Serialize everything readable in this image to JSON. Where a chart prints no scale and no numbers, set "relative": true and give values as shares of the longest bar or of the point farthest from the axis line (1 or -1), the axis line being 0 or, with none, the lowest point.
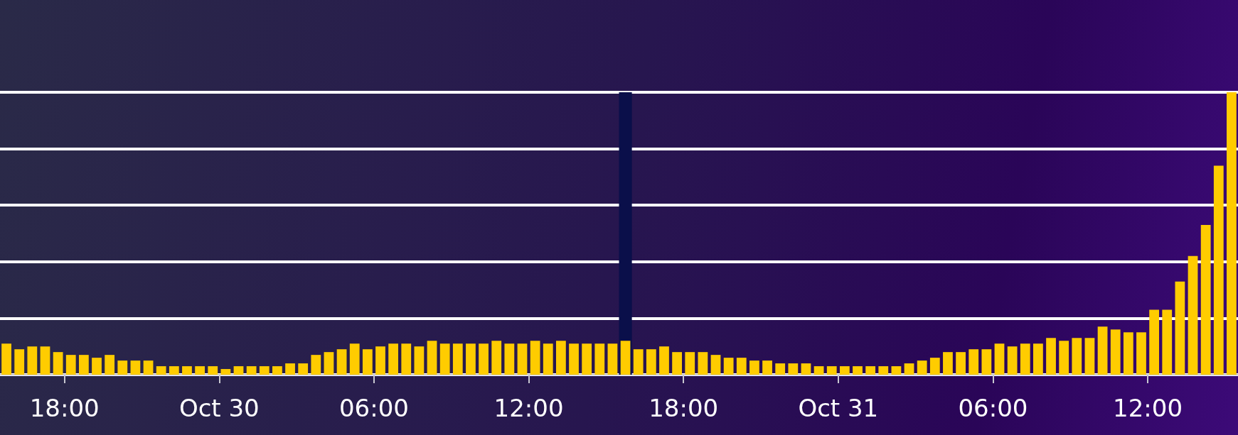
{
  "chart_data": {
    "type": "bar",
    "relative": true,
    "color": "#ffcc00",
    "grid": "y",
    "x": [
      "--10-29T15:45",
      "--10-29T16:15",
      "--10-29T16:45",
      "--10-29T17:15",
      "--10-29T17:45",
      "--10-29T18:15",
      "--10-29T18:45",
      "--10-29T19:15",
      "--10-29T19:45",
      "--10-29T20:15",
      "--10-29T20:45",
      "--10-29T21:15",
      "--10-29T21:45",
      "--10-29T22:15",
      "--10-29T22:45",
      "--10-29T23:15",
      "--10-29T23:45",
      "--10-30T00:15",
      "--10-30T00:45",
      "--10-30T01:15",
      "--10-30T01:45",
      "--10-30T02:15",
      "--10-30T02:45",
      "--10-30T03:15",
      "--10-30T03:45",
      "--10-30T04:15",
      "--10-30T04:45",
      "--10-30T05:15",
      "--10-30T05:45",
      "--10-30T06:15",
      "--10-30T06:45",
      "--10-30T07:15",
      "--10-30T07:45",
      "--10-30T08:15",
      "--10-30T08:45",
      "--10-30T09:15",
      "--10-30T09:45",
      "--10-30T10:15",
      "--10-30T10:45",
      "--10-30T11:15",
      "--10-30T11:45",
      "--10-30T12:15",
      "--10-30T12:45",
      "--10-30T13:15",
      "--10-30T13:45",
      "--10-30T14:15",
      "--10-30T14:45",
      "--10-30T15:15",
      "--10-30T15:45",
      "--10-30T16:15",
      "--10-30T16:45",
      "--10-30T17:15",
      "--10-30T17:45",
      "--10-30T18:15",
      "--10-30T18:45",
      "--10-30T19:15",
      "--10-30T19:45",
      "--10-30T20:15",
      "--10-30T20:45",
      "--10-30T21:15",
      "--10-30T21:45",
      "--10-30T22:15",
      "--10-30T22:45",
      "--10-30T23:15",
      "--10-30T23:45",
      "--10-31T00:15",
      "--10-31T00:45",
      "--10-31T01:15",
      "--10-31T01:45",
      "--10-31T02:15",
      "--10-31T02:45",
      "--10-31T03:15",
      "--10-31T03:45",
      "--10-31T04:15",
      "--10-31T04:45",
      "--10-31T05:15",
      "--10-31T05:45",
      "--10-31T06:15",
      "--10-31T06:45",
      "--10-31T07:15",
      "--10-31T07:45",
      "--10-31T08:15",
      "--10-31T08:45",
      "--10-31T09:15",
      "--10-31T09:45",
      "--10-31T10:15",
      "--10-31T10:45",
      "--10-31T11:15",
      "--10-31T11:45",
      "--10-31T12:15",
      "--10-31T12:45",
      "--10-31T13:15",
      "--10-31T13:45",
      "--10-31T14:15",
      "--10-31T14:45",
      "--10-31T15:15"
    ],
    "values": [
      0.11,
      0.09,
      0.1,
      0.1,
      0.08,
      0.07,
      0.07,
      0.06,
      0.07,
      0.05,
      0.05,
      0.05,
      0.03,
      0.03,
      0.03,
      0.03,
      0.03,
      0.02,
      0.03,
      0.03,
      0.03,
      0.03,
      0.04,
      0.04,
      0.07,
      0.08,
      0.09,
      0.11,
      0.09,
      0.1,
      0.11,
      0.11,
      0.1,
      0.12,
      0.11,
      0.11,
      0.11,
      0.11,
      0.12,
      0.11,
      0.11,
      0.12,
      0.11,
      0.12,
      0.11,
      0.11,
      0.11,
      0.11,
      0.12,
      0.09,
      0.09,
      0.1,
      0.08,
      0.08,
      0.08,
      0.07,
      0.06,
      0.06,
      0.05,
      0.05,
      0.04,
      0.04,
      0.04,
      0.03,
      0.03,
      0.03,
      0.03,
      0.03,
      0.03,
      0.03,
      0.04,
      0.05,
      0.06,
      0.08,
      0.08,
      0.09,
      0.09,
      0.11,
      0.1,
      0.11,
      0.11,
      0.13,
      0.12,
      0.13,
      0.13,
      0.17,
      0.16,
      0.15,
      0.15,
      0.23,
      0.23,
      0.33,
      0.42,
      0.53,
      0.74,
      1
    ],
    "xlim": [
      "--10-29T15:30",
      "--10-31T15:30"
    ],
    "xticks": [
      {
        "value": "--10-29T18:00",
        "label": "18:00"
      },
      {
        "value": "--10-30T00:00",
        "label": "Oct 30"
      },
      {
        "value": "--10-30T06:00",
        "label": "06:00"
      },
      {
        "value": "--10-30T12:00",
        "label": "12:00"
      },
      {
        "value": "--10-30T18:00",
        "label": "18:00"
      },
      {
        "value": "--10-31T00:00",
        "label": "Oct 31"
      },
      {
        "value": "--10-31T06:00",
        "label": "06:00"
      },
      {
        "value": "--10-31T12:00",
        "label": "12:00"
      }
    ],
    "bands": [
      {
        "axis": "x",
        "from": "--10-30T15:30",
        "to": "--10-30T16:00",
        "color": "#0a0f4a"
      }
    ]
  }
}
